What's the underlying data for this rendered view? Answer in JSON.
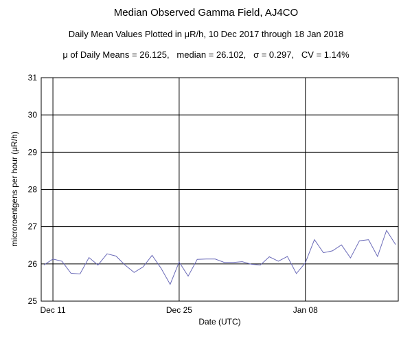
{
  "chart_data": {
    "type": "line",
    "title": "Median Observed Gamma Field, AJ4CO",
    "subtitle": "Daily Mean Values Plotted in μR/h, 10 Dec 2017 through 18 Jan 2018",
    "stats_line": "μ of Daily Means = 26.125,   median = 26.102,   σ = 0.297,   CV = 1.14%",
    "xlabel": "Date (UTC)",
    "ylabel": "microroentgens per hour (μR/h)",
    "ylim": [
      25,
      31
    ],
    "yticks": [
      25,
      26,
      27,
      28,
      29,
      30,
      31
    ],
    "x_ticks": [
      {
        "label": "Dec 11",
        "date": "2017-12-11"
      },
      {
        "label": "Dec 25",
        "date": "2017-12-25"
      },
      {
        "label": "Jan 08",
        "date": "2018-01-08"
      }
    ],
    "grid": true,
    "line_color": "#6a6ab8",
    "series": [
      {
        "x": [
          "2017-12-10",
          "2017-12-11",
          "2017-12-12",
          "2017-12-13",
          "2017-12-14",
          "2017-12-15",
          "2017-12-16",
          "2017-12-17",
          "2017-12-18",
          "2017-12-19",
          "2017-12-20",
          "2017-12-21",
          "2017-12-22",
          "2017-12-23",
          "2017-12-24",
          "2017-12-25",
          "2017-12-26",
          "2017-12-27",
          "2017-12-28",
          "2017-12-29",
          "2017-12-30",
          "2017-12-31",
          "2018-01-01",
          "2018-01-02",
          "2018-01-03",
          "2018-01-04",
          "2018-01-05",
          "2018-01-06",
          "2018-01-07",
          "2018-01-08",
          "2018-01-09",
          "2018-01-10",
          "2018-01-11",
          "2018-01-12",
          "2018-01-13",
          "2018-01-14",
          "2018-01-15",
          "2018-01-16",
          "2018-01-17",
          "2018-01-18"
        ],
        "values": [
          25.97,
          26.13,
          26.07,
          25.75,
          25.73,
          26.17,
          25.97,
          26.27,
          26.21,
          25.97,
          25.77,
          25.92,
          26.23,
          25.88,
          25.45,
          26.05,
          25.67,
          26.12,
          26.13,
          26.13,
          26.04,
          26.04,
          26.06,
          25.99,
          25.97,
          26.19,
          26.07,
          26.2,
          25.74,
          26.03,
          26.65,
          26.3,
          26.35,
          26.51,
          26.16,
          26.62,
          26.65,
          26.2,
          26.9,
          26.52
        ]
      }
    ]
  }
}
